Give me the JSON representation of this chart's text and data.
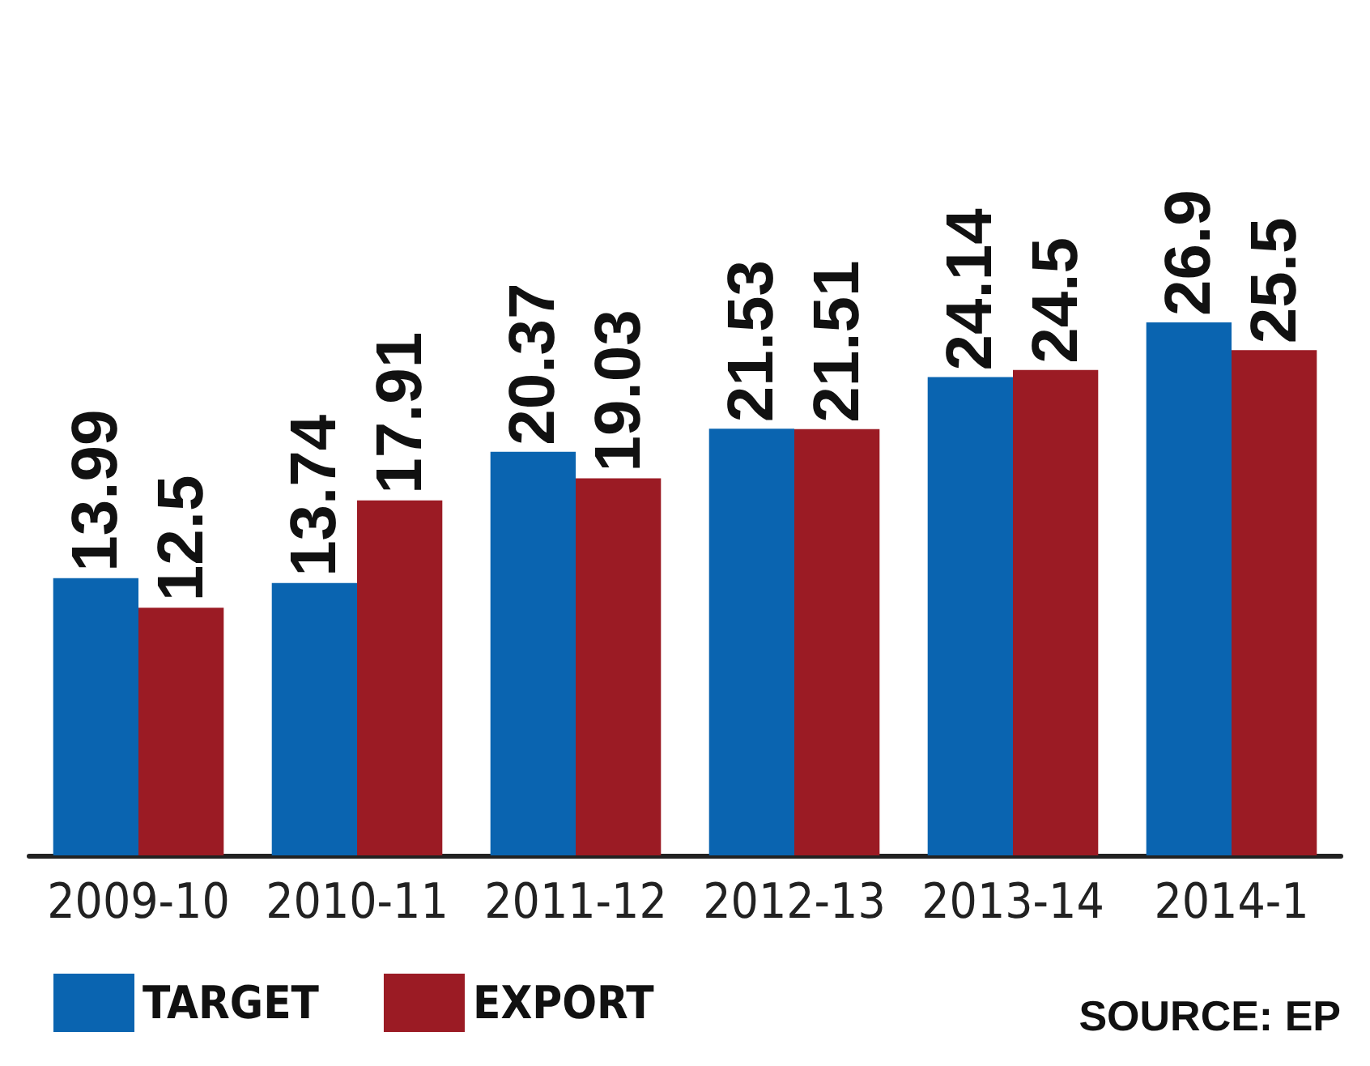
{
  "chart_data": {
    "type": "bar",
    "categories": [
      "2009-10",
      "2010-11",
      "2011-12",
      "2012-13",
      "2013-14",
      "2014-1"
    ],
    "series": [
      {
        "name": "TARGET",
        "color": "#0a64b0",
        "values": [
          13.99,
          13.74,
          20.37,
          21.53,
          24.14,
          26.9
        ]
      },
      {
        "name": "EXPORT",
        "color": "#9b1b24",
        "values": [
          12.5,
          17.91,
          19.03,
          21.51,
          24.5,
          25.5
        ]
      }
    ],
    "data_labels": true,
    "legend": "bottom left",
    "annotations": [
      "SOURCE: EP"
    ]
  }
}
